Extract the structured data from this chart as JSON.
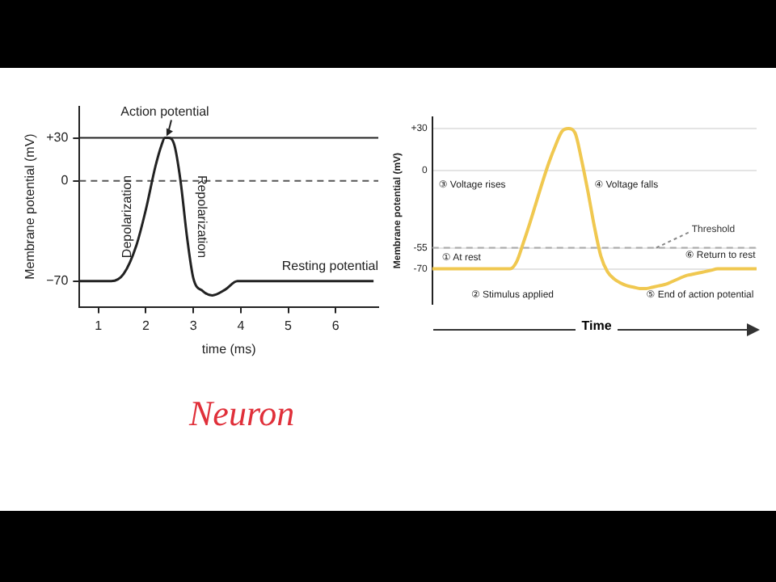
{
  "chart_data": [
    {
      "type": "line",
      "xlabel": "time (ms)",
      "ylabel": "Membrane potential (mV)",
      "x": [
        0.6,
        1.27,
        1.53,
        1.8,
        2.0,
        2.2,
        2.33,
        2.4,
        2.47,
        2.6,
        2.73,
        2.87,
        3.0,
        3.2,
        3.4,
        3.67,
        3.93,
        6.8
      ],
      "values": [
        -70,
        -70,
        -65,
        -45,
        -20,
        10,
        25,
        30,
        30,
        25,
        0,
        -40,
        -68,
        -77,
        -80,
        -76,
        -70,
        -70
      ],
      "color": "#222222",
      "xlim": [
        0.6,
        6.9
      ],
      "xticks": [
        1,
        2,
        3,
        4,
        5,
        6
      ],
      "ylim": [
        -88,
        52
      ],
      "yticks": [
        {
          "value": 30,
          "label": "+30"
        },
        0,
        {
          "value": -70,
          "label": "−70"
        }
      ],
      "grid": false,
      "ref_lines": [
        {
          "axis": "y",
          "value": 30,
          "line_style": "solid",
          "color": "#222222"
        },
        {
          "axis": "y",
          "value": 0,
          "line_style": "dashed",
          "color": "#555555"
        }
      ],
      "annotations": [
        {
          "text": "Action potential",
          "x": 2.4,
          "y": 30
        },
        "Depolarization",
        "Repolarization",
        "Resting potential",
        "Neuron"
      ]
    },
    {
      "type": "line",
      "xlabel": "Time",
      "ylabel": "Membrane potential (mV)",
      "categories": [
        null,
        null,
        null,
        null,
        null,
        null,
        null,
        null,
        null,
        null,
        null,
        null,
        null,
        null,
        null,
        null,
        null,
        null,
        null,
        null,
        null,
        null,
        null,
        null,
        null,
        null,
        null,
        null,
        null,
        null,
        null,
        null,
        null,
        null,
        null,
        null,
        null,
        null,
        null,
        null,
        null,
        null,
        null,
        null,
        null,
        null,
        null,
        null,
        null,
        null,
        null
      ],
      "values": [
        -70,
        -70,
        -70,
        -70,
        -70,
        -70,
        -70,
        -70,
        -70,
        -70,
        -70,
        -70,
        -70,
        -65,
        -52,
        -38,
        -23,
        -8,
        6,
        18,
        28,
        30,
        27,
        8,
        -15,
        -40,
        -61,
        -72,
        -77,
        -80,
        -82,
        -83,
        -84,
        -84,
        -83,
        -82,
        -81,
        -79,
        -77,
        -75,
        -74,
        -73,
        -72,
        -71,
        -70,
        -70,
        -70,
        -70,
        -70,
        -70,
        -70
      ],
      "color": "#f0c850",
      "ylim": [
        -95,
        38
      ],
      "yticks": [
        {
          "value": 30,
          "label": "+30"
        },
        0,
        {
          "value": -55,
          "label": "-55"
        },
        {
          "value": -70,
          "label": "-70"
        }
      ],
      "grid": "y",
      "ref_lines": [
        {
          "axis": "y",
          "value": -55,
          "label": "Threshold",
          "line_style": "dashed",
          "color": "#aaaaaa"
        }
      ],
      "annotations": [
        "① At rest",
        "② Stimulus applied",
        "③ Voltage rises",
        "④ Voltage falls",
        "⑤ End of action potential",
        "⑥ Return to rest"
      ]
    }
  ]
}
